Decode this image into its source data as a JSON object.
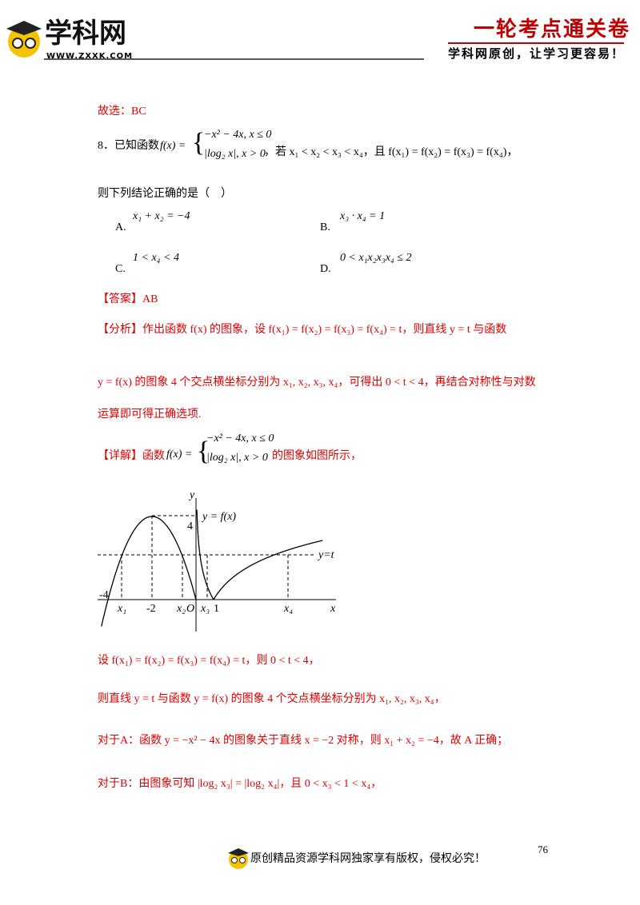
{
  "header": {
    "logo_text": "学科网",
    "logo_url": "WWW.ZXXK.COM",
    "series_title": "一轮考点通关卷",
    "slogan": "学科网原创，让学习更容易！"
  },
  "content": {
    "prev_answer": "故选：BC",
    "question": {
      "stem": "8．已知函数",
      "func": "f(x) =",
      "piece1": "−x² − 4x, x ≤ 0",
      "piece2": "|log₂ x|, x > 0",
      "condition": "，若 x₁ < x₂ < x₃ < x₄，且 f(x₁) = f(x₂) = f(x₃) = f(x₄)，",
      "prompt": "则下列结论正确的是（　）",
      "options": [
        {
          "letter": "A.",
          "text": "x₁ + x₂ = −4"
        },
        {
          "letter": "B.",
          "text": "x₃ · x₄ = 1"
        },
        {
          "letter": "C.",
          "text": "1 < x₄ < 4"
        },
        {
          "letter": "D.",
          "text": "0 < x₁x₂x₃x₄ ≤ 2"
        }
      ]
    },
    "answer": {
      "tag": "【答案】",
      "text": "AB"
    },
    "analysis": {
      "tag": "【分析】",
      "lines": [
        "作出函数 f(x) 的图象，设 f(x₁) = f(x₂) = f(x₃) = f(x₄) = t，则直线 y = t 与函数",
        "y = f(x) 的图象 4 个交点横坐标分别为 x₁, x₂, x₃, x₄，可得出 0 < t < 4，再结合对称性与对数",
        "运算即可得正确选项."
      ]
    },
    "detail": {
      "tag": "【详解】",
      "intro": "函数",
      "func": "f(x) =",
      "piece1": "−x² − 4x, x ≤ 0",
      "piece2": "|log₂ x|, x > 0",
      "outro": "的图象如图所示，"
    },
    "graph": {
      "y_axis": "y",
      "x_axis": "x",
      "curve_label": "y = f(x)",
      "line_label": "y=t",
      "four": "4",
      "minus_four": "-4",
      "minus_two": "-2",
      "origin": "O",
      "one": "1",
      "x1": "x₁",
      "x2": "x₂",
      "x3": "x₃",
      "x4": "x₄"
    },
    "after_lines": [
      "设 f(x₁) = f(x₂) = f(x₃) = f(x₄) = t，则 0 < t < 4，",
      "则直线 y = t 与函数 y = f(x) 的图象 4 个交点横坐标分别为 x₁, x₂, x₃, x₄，",
      "对于A：函数 y = −x² − 4x 的图象关于直线 x = −2 对称，则 x₁ + x₂ = −4，故 A 正确；",
      "对于B：由图象可知 |log₂ x₃| = |log₂ x₄|，且 0 < x₃ < 1 < x₄，"
    ]
  },
  "footer": {
    "text": "原创精品资源学科网独家享有版权，侵权必究！",
    "page": "76"
  }
}
